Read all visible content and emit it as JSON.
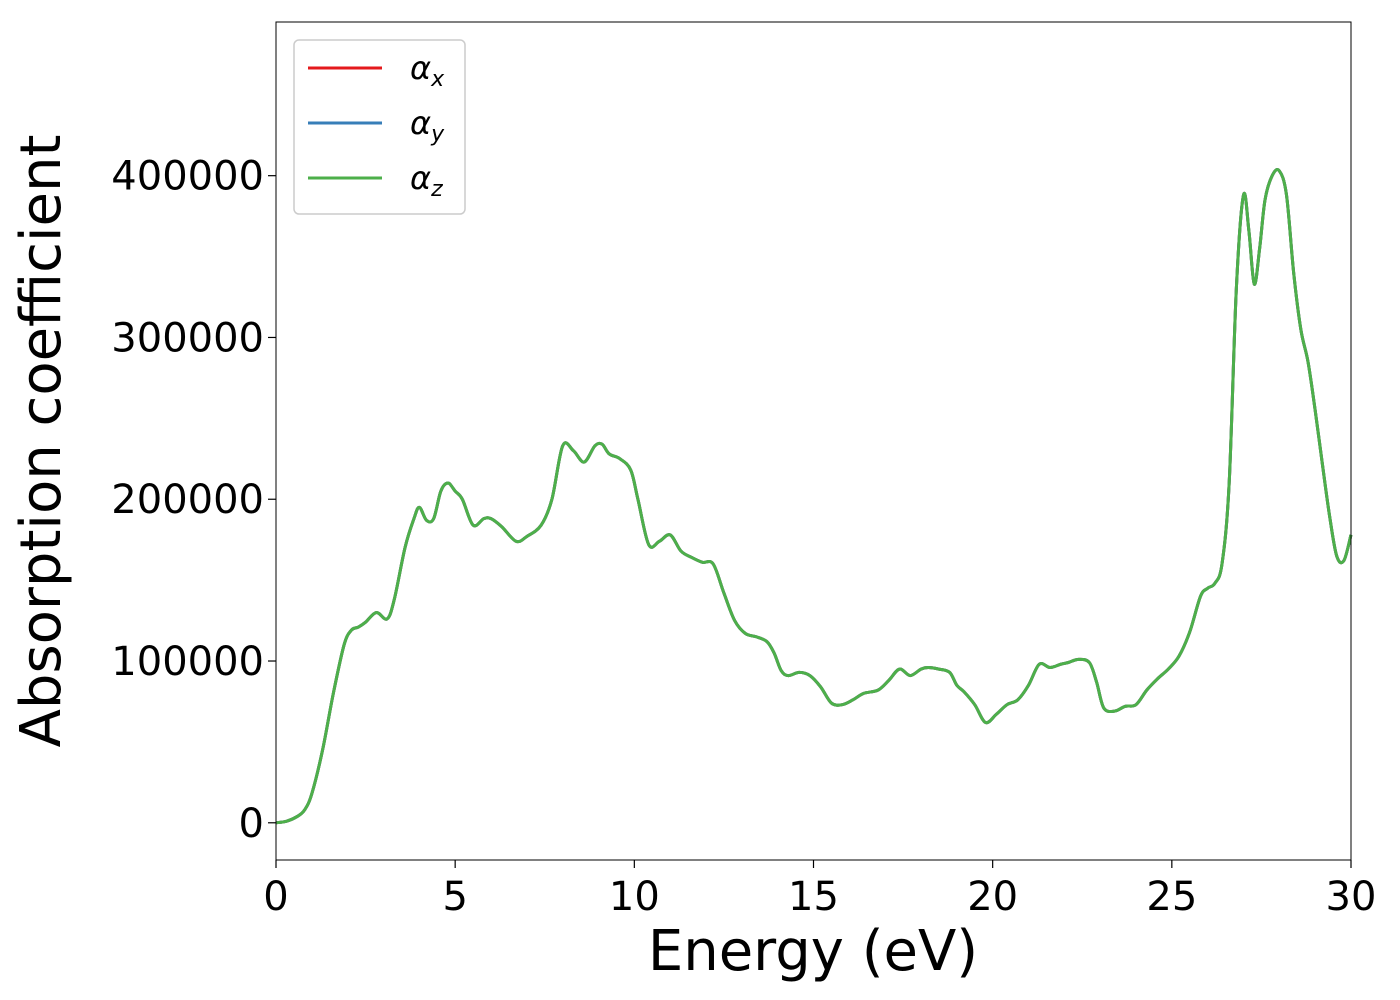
{
  "chart_data": {
    "type": "line",
    "title": "",
    "xlabel": "Energy (eV)",
    "ylabel": "Absorption coefficient",
    "xlim": [
      0,
      30
    ],
    "ylim": [
      -23000,
      495000
    ],
    "xticks": [
      0,
      5,
      10,
      15,
      20,
      25,
      30
    ],
    "xtick_labels": [
      "0",
      "5",
      "10",
      "15",
      "20",
      "25",
      "30"
    ],
    "yticks": [
      0,
      100000,
      200000,
      300000,
      400000
    ],
    "ytick_labels": [
      "0",
      "100000",
      "200000",
      "300000",
      "400000"
    ],
    "grid": false,
    "legend_position": "top-left",
    "series": [
      {
        "name": "α_x",
        "legend_base": "α",
        "legend_sub": "x",
        "color": "#e41a1c"
      },
      {
        "name": "α_y",
        "legend_base": "α",
        "legend_sub": "y",
        "color": "#377eb8"
      },
      {
        "name": "α_z",
        "legend_base": "α",
        "legend_sub": "z",
        "color": "#4daf4a"
      }
    ],
    "x": [
      0,
      0.3,
      0.6,
      0.8,
      1.0,
      1.3,
      1.6,
      1.9,
      2.1,
      2.3,
      2.5,
      2.8,
      3.1,
      3.3,
      3.6,
      3.85,
      4.0,
      4.2,
      4.4,
      4.6,
      4.8,
      5.0,
      5.2,
      5.5,
      5.8,
      6.0,
      6.3,
      6.7,
      7.0,
      7.4,
      7.7,
      8.0,
      8.3,
      8.6,
      8.9,
      9.1,
      9.3,
      9.6,
      9.9,
      10.1,
      10.4,
      10.7,
      11.0,
      11.3,
      11.6,
      11.9,
      12.2,
      12.5,
      12.8,
      13.1,
      13.4,
      13.7,
      13.9,
      14.1,
      14.3,
      14.6,
      14.9,
      15.2,
      15.5,
      15.8,
      16.1,
      16.4,
      16.8,
      17.1,
      17.4,
      17.7,
      18.0,
      18.2,
      18.5,
      18.8,
      19.0,
      19.2,
      19.5,
      19.8,
      20.1,
      20.4,
      20.7,
      21.0,
      21.3,
      21.6,
      21.9,
      22.1,
      22.4,
      22.7,
      22.9,
      23.1,
      23.4,
      23.7,
      24.0,
      24.3,
      24.6,
      24.9,
      25.2,
      25.5,
      25.8,
      26.0,
      26.2,
      26.4,
      26.6,
      26.8,
      27.0,
      27.15,
      27.3,
      27.45,
      27.6,
      27.8,
      28.0,
      28.2,
      28.4,
      28.6,
      28.8,
      29.0,
      29.2,
      29.4,
      29.6,
      29.8,
      30.0
    ],
    "values": [
      0,
      1000,
      4000,
      8000,
      18000,
      45000,
      80000,
      110000,
      119000,
      121000,
      124000,
      130000,
      126000,
      138000,
      170000,
      188000,
      195000,
      187000,
      188000,
      205000,
      210000,
      205000,
      200000,
      184000,
      188000,
      188000,
      183000,
      174000,
      177000,
      184000,
      200000,
      233000,
      230000,
      223000,
      233000,
      234000,
      228000,
      225000,
      218000,
      200000,
      172000,
      174000,
      178000,
      168000,
      164000,
      161000,
      160000,
      142000,
      125000,
      117000,
      115000,
      112000,
      105000,
      94000,
      91000,
      93000,
      91000,
      84000,
      74000,
      73000,
      76000,
      80000,
      82000,
      88000,
      95000,
      91000,
      95000,
      96000,
      95000,
      93000,
      85000,
      81000,
      73000,
      62000,
      67000,
      73000,
      76000,
      85000,
      98000,
      96000,
      98000,
      99000,
      101000,
      99000,
      87000,
      71000,
      69000,
      72000,
      73000,
      82000,
      89000,
      95000,
      103000,
      118000,
      140000,
      145000,
      148000,
      160000,
      210000,
      330000,
      388000,
      366000,
      333000,
      355000,
      385000,
      400000,
      403000,
      388000,
      340000,
      305000,
      285000,
      255000,
      222000,
      190000,
      165000,
      162000,
      178000
    ]
  }
}
